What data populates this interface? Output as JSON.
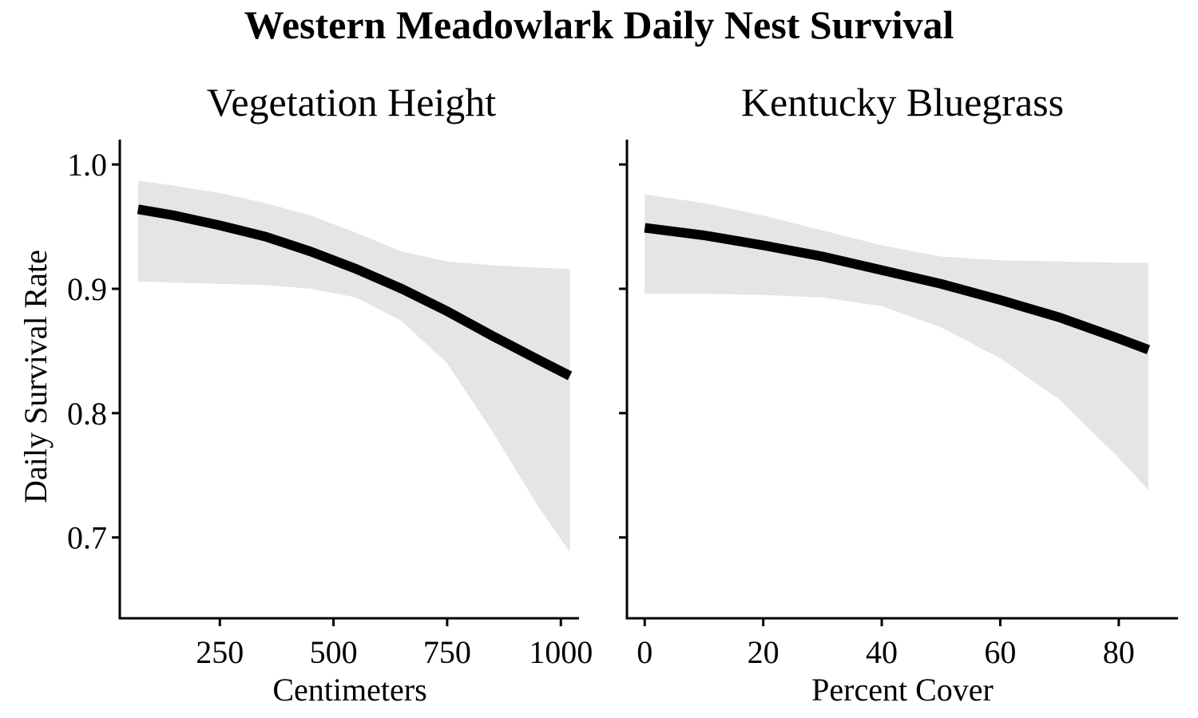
{
  "title": "Western Meadowlark Daily Nest Survival",
  "ylabel": "Daily Survival Rate",
  "colors": {
    "ribbon": "#e5e5e5",
    "line": "#000000",
    "axis": "#000000"
  },
  "chart_data": [
    {
      "type": "line",
      "title": "Vegetation Height",
      "xlabel": "Centimeters",
      "ylabel": "Daily Survival Rate",
      "xlim": [
        30,
        1040
      ],
      "ylim": [
        0.635,
        1.02
      ],
      "xticks": [
        250,
        500,
        750,
        1000
      ],
      "yticks": [
        0.7,
        0.8,
        0.9,
        1.0
      ],
      "ytick_labels": [
        "0.7",
        "0.8",
        "0.9",
        "1.0"
      ],
      "grid": false,
      "series": [
        {
          "x": [
            70,
            150,
            250,
            350,
            450,
            550,
            650,
            750,
            850,
            950,
            1020
          ],
          "y": [
            0.964,
            0.959,
            0.951,
            0.942,
            0.93,
            0.916,
            0.9,
            0.882,
            0.862,
            0.843,
            0.83
          ],
          "lower": [
            0.906,
            0.905,
            0.904,
            0.903,
            0.9,
            0.893,
            0.874,
            0.84,
            0.785,
            0.725,
            0.688
          ],
          "upper": [
            0.987,
            0.983,
            0.977,
            0.969,
            0.959,
            0.945,
            0.93,
            0.922,
            0.919,
            0.917,
            0.916
          ]
        }
      ]
    },
    {
      "type": "line",
      "title": "Kentucky Bluegrass",
      "xlabel": "Percent Cover",
      "xlim": [
        -3,
        90
      ],
      "ylim": [
        0.635,
        1.02
      ],
      "xticks": [
        0,
        20,
        40,
        60,
        80
      ],
      "grid": false,
      "series": [
        {
          "x": [
            0,
            10,
            20,
            30,
            40,
            50,
            60,
            70,
            80,
            85
          ],
          "y": [
            0.949,
            0.943,
            0.935,
            0.926,
            0.915,
            0.904,
            0.891,
            0.877,
            0.86,
            0.851
          ],
          "lower": [
            0.896,
            0.896,
            0.895,
            0.893,
            0.886,
            0.869,
            0.844,
            0.811,
            0.764,
            0.738
          ],
          "upper": [
            0.976,
            0.969,
            0.959,
            0.947,
            0.935,
            0.926,
            0.923,
            0.922,
            0.921,
            0.921
          ]
        }
      ]
    }
  ]
}
